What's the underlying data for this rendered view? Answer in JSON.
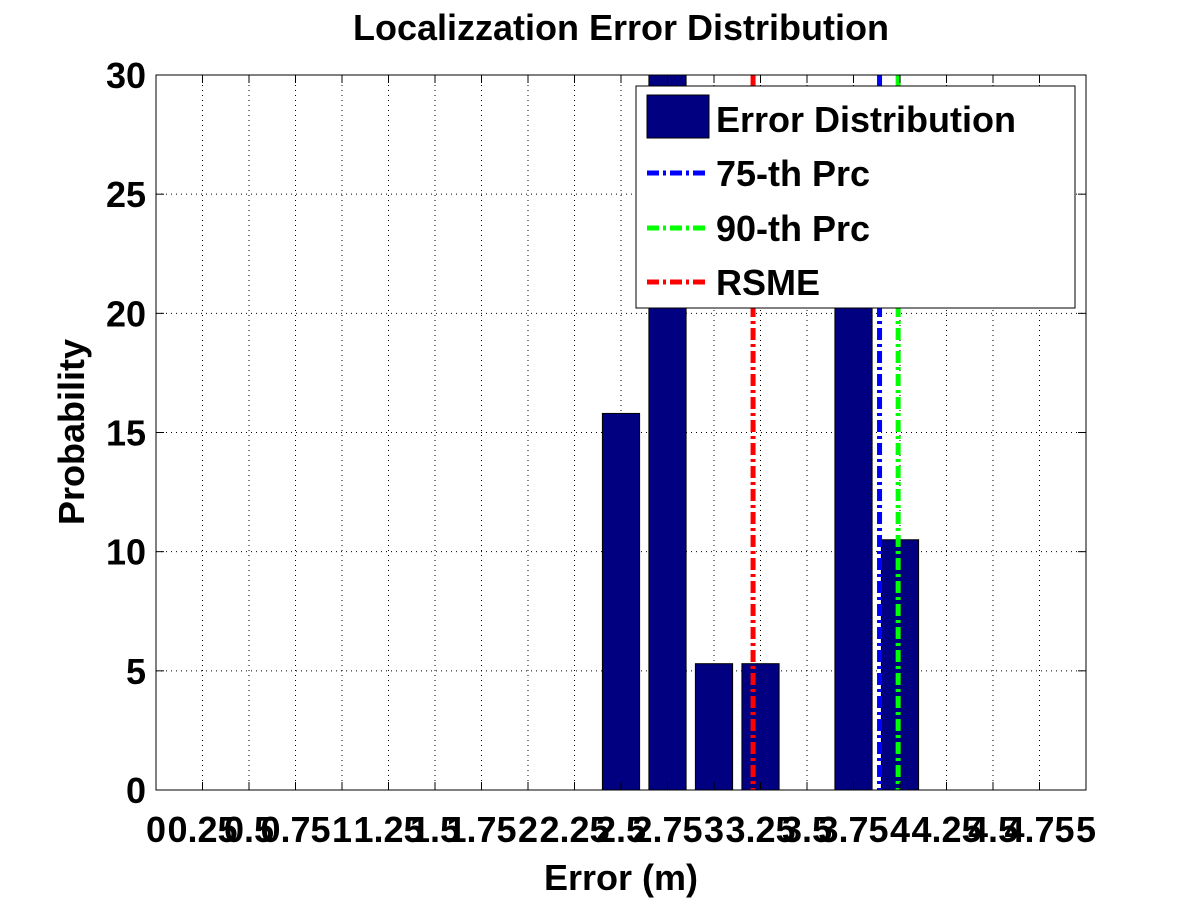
{
  "chart_data": {
    "type": "bar",
    "title": "Localizzation Error Distribution",
    "xlabel": "Error (m)",
    "ylabel": "Probability",
    "xlim": [
      0,
      5
    ],
    "ylim": [
      0,
      30
    ],
    "x_ticks": [
      0,
      0.25,
      0.5,
      0.75,
      1,
      1.25,
      1.5,
      1.75,
      2,
      2.25,
      2.5,
      2.75,
      3,
      3.25,
      3.5,
      3.75,
      4,
      4.25,
      4.5,
      4.75,
      5
    ],
    "x_tick_labels": [
      "0",
      "0.25",
      "0.5",
      "0.75",
      "1",
      "1.25",
      "1.5",
      "1.75",
      "2",
      "2.25",
      "2.5",
      "2.75",
      "3",
      "3.25",
      "3.5",
      "3.75",
      "4",
      "4.25",
      "4.5",
      "4.75",
      "5"
    ],
    "y_ticks": [
      0,
      5,
      10,
      15,
      20,
      25,
      30
    ],
    "y_tick_labels": [
      "0",
      "5",
      "10",
      "15",
      "20",
      "25",
      "30"
    ],
    "grid": true,
    "legend_position": "top-right",
    "bars": {
      "name": "Error Distribution",
      "color": "#000080",
      "bin_width": 0.25,
      "x": [
        2.5,
        2.75,
        3.0,
        3.25,
        3.5,
        3.75,
        4.0
      ],
      "values": [
        15.8,
        31.6,
        5.3,
        5.3,
        0,
        21.1,
        10.5
      ]
    },
    "lines": [
      {
        "name": "75-th Prc",
        "x": 3.89,
        "color": "#0000ff"
      },
      {
        "name": "90-th Prc",
        "x": 3.99,
        "color": "#00ff00"
      },
      {
        "name": "RSME",
        "x": 3.21,
        "color": "#ff0000"
      }
    ]
  }
}
